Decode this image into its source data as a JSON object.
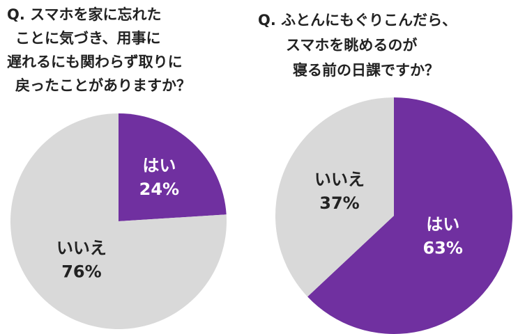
{
  "chart_data": [
    {
      "type": "pie",
      "title": [
        "Q. スマホを家に忘れた",
        "ことに気づき、用事に",
        "遅れるにも関わらず取りに",
        "戻ったことがありますか？"
      ],
      "categories": [
        "はい",
        "いいえ"
      ],
      "values": [
        24,
        76
      ],
      "value_labels": [
        "24%",
        "76%"
      ],
      "colors": [
        "#7030a0",
        "#d9d9d9"
      ]
    },
    {
      "type": "pie",
      "title": [
        "Q. ふとんにもぐりこんだら、",
        "スマホを眺めるのが",
        "寝る前の日課ですか？"
      ],
      "categories": [
        "はい",
        "いいえ"
      ],
      "values": [
        63,
        37
      ],
      "value_labels": [
        "63%",
        "37%"
      ],
      "colors": [
        "#7030a0",
        "#d9d9d9"
      ]
    }
  ]
}
